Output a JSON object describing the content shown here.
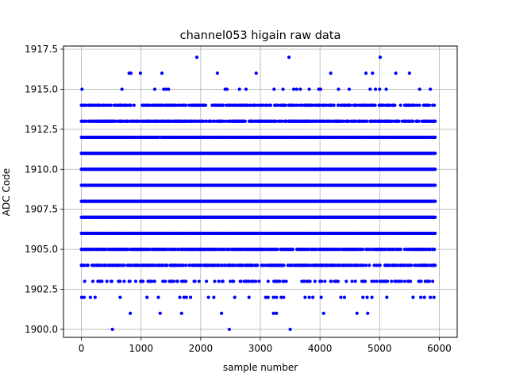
{
  "chart_data": {
    "type": "scatter",
    "title": "channel053 higain raw data",
    "xlabel": "sample number",
    "ylabel": "ADC Code",
    "xlim": [
      -300,
      6300
    ],
    "ylim": [
      1899.5,
      1917.7
    ],
    "x_ticks": [
      0,
      1000,
      2000,
      3000,
      4000,
      5000,
      6000
    ],
    "x_tick_labels": [
      "0",
      "1000",
      "2000",
      "3000",
      "4000",
      "5000",
      "6000"
    ],
    "y_ticks": [
      1900.0,
      1902.5,
      1905.0,
      1907.5,
      1910.0,
      1912.5,
      1915.0,
      1917.5
    ],
    "y_tick_labels": [
      "1900.0",
      "1902.5",
      "1905.0",
      "1907.5",
      "1910.0",
      "1912.5",
      "1915.0",
      "1917.5"
    ],
    "grid": true,
    "marker_color": "#0000ff",
    "x_range": [
      0,
      5930
    ],
    "levels": [
      {
        "y": 1917,
        "x": [
          1935,
          3480,
          5010
        ]
      },
      {
        "y": 1916,
        "x": [
          800,
          830,
          990,
          1350,
          2280,
          2930,
          4180,
          4770,
          4880,
          5270,
          5500
        ]
      },
      {
        "y": 1915,
        "x": [
          10,
          680,
          1230,
          1380,
          1420,
          1460,
          2410,
          2440,
          2650,
          2760,
          3230,
          3380,
          3560,
          3610,
          3670,
          3820,
          3980,
          4010,
          4310,
          4490,
          4840,
          4930,
          5000,
          5110,
          5670,
          5850
        ]
      },
      {
        "y": 1914,
        "density": 0.55
      },
      {
        "y": 1913,
        "density": 0.72
      },
      {
        "y": 1912,
        "density": 0.93
      },
      {
        "y": 1911,
        "density": 1.0
      },
      {
        "y": 1910,
        "density": 1.0
      },
      {
        "y": 1909,
        "density": 1.0
      },
      {
        "y": 1908,
        "density": 1.0
      },
      {
        "y": 1907,
        "density": 1.0
      },
      {
        "y": 1906,
        "density": 0.95
      },
      {
        "y": 1905,
        "density": 0.8
      },
      {
        "y": 1904,
        "density": 0.6
      },
      {
        "y": 1903,
        "density": 0.28
      },
      {
        "y": 1902,
        "x": [
          5,
          45,
          150,
          230,
          650,
          1100,
          1290,
          1650,
          1720,
          1760,
          1830,
          2130,
          2220,
          2570,
          2810,
          3090,
          3130,
          3220,
          3270,
          3350,
          3390,
          3750,
          3820,
          3880,
          4020,
          4350,
          4410,
          4720,
          4790,
          4870,
          5120,
          5560,
          5690,
          5750,
          5850,
          5910
        ]
      },
      {
        "y": 1901,
        "x": [
          820,
          1320,
          1680,
          2350,
          3220,
          3270,
          4060,
          4620,
          4800
        ]
      },
      {
        "y": 1900,
        "x": [
          520,
          2480,
          3500
        ]
      }
    ]
  }
}
